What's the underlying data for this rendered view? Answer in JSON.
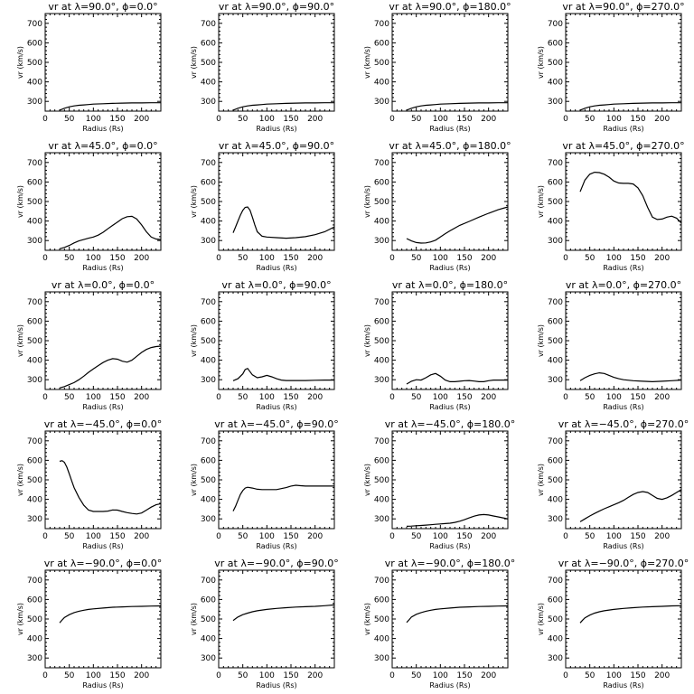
{
  "chart_data": [
    {
      "type": "line",
      "title": "v<sub>r</sub> at λ=90.0°, φ=0.0°",
      "title_text": "vr at λ=90.0°, ϕ=0.0°",
      "xlabel": "Radius (Rs)",
      "ylabel": "vr (km/s)",
      "xlim": [
        0,
        240
      ],
      "ylim": [
        250,
        750
      ],
      "xticks": [
        0,
        50,
        100,
        150,
        200
      ],
      "yticks": [
        300,
        400,
        500,
        600,
        700
      ],
      "x": [
        30,
        40,
        50,
        60,
        70,
        80,
        90,
        100,
        120,
        140,
        160,
        180,
        200,
        220,
        240
      ],
      "y": [
        255,
        265,
        272,
        277,
        280,
        282,
        284,
        286,
        288,
        290,
        291,
        292,
        292,
        293,
        293
      ]
    },
    {
      "type": "line",
      "title_text": "vr at λ=90.0°, ϕ=90.0°",
      "xlabel": "Radius (Rs)",
      "ylabel": "vr (km/s)",
      "xlim": [
        0,
        240
      ],
      "ylim": [
        250,
        750
      ],
      "xticks": [
        0,
        50,
        100,
        150,
        200
      ],
      "yticks": [
        300,
        400,
        500,
        600,
        700
      ],
      "x": [
        30,
        40,
        50,
        60,
        70,
        80,
        90,
        100,
        120,
        140,
        160,
        180,
        200,
        220,
        240
      ],
      "y": [
        255,
        265,
        272,
        277,
        280,
        282,
        284,
        286,
        288,
        290,
        291,
        292,
        292,
        293,
        293
      ]
    },
    {
      "type": "line",
      "title_text": "vr at λ=90.0°, ϕ=180.0°",
      "xlabel": "Radius (Rs)",
      "ylabel": "vr (km/s)",
      "xlim": [
        0,
        240
      ],
      "ylim": [
        250,
        750
      ],
      "xticks": [
        0,
        50,
        100,
        150,
        200
      ],
      "yticks": [
        300,
        400,
        500,
        600,
        700
      ],
      "x": [
        30,
        40,
        50,
        60,
        70,
        80,
        90,
        100,
        120,
        140,
        160,
        180,
        200,
        220,
        240
      ],
      "y": [
        255,
        265,
        272,
        277,
        280,
        282,
        284,
        286,
        288,
        290,
        291,
        292,
        292,
        293,
        293
      ]
    },
    {
      "type": "line",
      "title_text": "vr at λ=90.0°, ϕ=270.0°",
      "xlabel": "Radius (Rs)",
      "ylabel": "vr (km/s)",
      "xlim": [
        0,
        240
      ],
      "ylim": [
        250,
        750
      ],
      "xticks": [
        0,
        50,
        100,
        150,
        200
      ],
      "yticks": [
        300,
        400,
        500,
        600,
        700
      ],
      "x": [
        30,
        40,
        50,
        60,
        70,
        80,
        90,
        100,
        120,
        140,
        160,
        180,
        200,
        220,
        240
      ],
      "y": [
        255,
        265,
        272,
        277,
        280,
        282,
        284,
        286,
        288,
        290,
        291,
        292,
        292,
        293,
        293
      ]
    },
    {
      "type": "line",
      "title_text": "vr at λ=45.0°, ϕ=0.0°",
      "xlabel": "Radius (Rs)",
      "ylabel": "vr (km/s)",
      "xlim": [
        0,
        240
      ],
      "ylim": [
        250,
        750
      ],
      "xticks": [
        0,
        50,
        100,
        150,
        200
      ],
      "yticks": [
        300,
        400,
        500,
        600,
        700
      ],
      "x": [
        30,
        40,
        50,
        60,
        70,
        80,
        90,
        100,
        110,
        120,
        130,
        140,
        150,
        160,
        170,
        180,
        190,
        200,
        210,
        220,
        230,
        240
      ],
      "y": [
        258,
        265,
        275,
        288,
        298,
        305,
        312,
        318,
        328,
        342,
        360,
        378,
        395,
        412,
        422,
        424,
        410,
        380,
        345,
        318,
        308,
        305
      ]
    },
    {
      "type": "line",
      "title_text": "vr at λ=45.0°, ϕ=90.0°",
      "xlabel": "Radius (Rs)",
      "ylabel": "vr (km/s)",
      "xlim": [
        0,
        240
      ],
      "ylim": [
        250,
        750
      ],
      "xticks": [
        0,
        50,
        100,
        150,
        200
      ],
      "yticks": [
        300,
        400,
        500,
        600,
        700
      ],
      "x": [
        30,
        35,
        40,
        45,
        50,
        55,
        60,
        65,
        70,
        75,
        80,
        90,
        100,
        120,
        140,
        160,
        180,
        200,
        220,
        240
      ],
      "y": [
        340,
        370,
        400,
        430,
        455,
        470,
        472,
        455,
        420,
        380,
        345,
        322,
        318,
        315,
        312,
        315,
        320,
        330,
        345,
        370
      ]
    },
    {
      "type": "line",
      "title_text": "vr at λ=45.0°, ϕ=180.0°",
      "xlabel": "Radius (Rs)",
      "ylabel": "vr (km/s)",
      "xlim": [
        0,
        240
      ],
      "ylim": [
        250,
        750
      ],
      "xticks": [
        0,
        50,
        100,
        150,
        200
      ],
      "yticks": [
        300,
        400,
        500,
        600,
        700
      ],
      "x": [
        30,
        40,
        50,
        60,
        70,
        80,
        90,
        100,
        110,
        120,
        140,
        160,
        180,
        200,
        220,
        240
      ],
      "y": [
        310,
        298,
        290,
        287,
        288,
        293,
        302,
        318,
        335,
        350,
        378,
        398,
        420,
        440,
        458,
        472
      ]
    },
    {
      "type": "line",
      "title_text": "vr at λ=45.0°, ϕ=270.0°",
      "xlabel": "Radius (Rs)",
      "ylabel": "vr (km/s)",
      "xlim": [
        0,
        240
      ],
      "ylim": [
        250,
        750
      ],
      "xticks": [
        0,
        50,
        100,
        150,
        200
      ],
      "yticks": [
        300,
        400,
        500,
        600,
        700
      ],
      "x": [
        30,
        40,
        50,
        60,
        70,
        80,
        90,
        100,
        110,
        120,
        130,
        140,
        150,
        160,
        170,
        180,
        190,
        200,
        210,
        220,
        230,
        240
      ],
      "y": [
        550,
        610,
        640,
        650,
        648,
        640,
        625,
        605,
        595,
        593,
        593,
        590,
        570,
        530,
        470,
        420,
        408,
        410,
        420,
        425,
        415,
        390
      ]
    },
    {
      "type": "line",
      "title_text": "vr at λ=0.0°, ϕ=0.0°",
      "xlabel": "Radius (Rs)",
      "ylabel": "vr (km/s)",
      "xlim": [
        0,
        240
      ],
      "ylim": [
        250,
        750
      ],
      "xticks": [
        0,
        50,
        100,
        150,
        200
      ],
      "yticks": [
        300,
        400,
        500,
        600,
        700
      ],
      "x": [
        30,
        40,
        50,
        60,
        70,
        80,
        90,
        100,
        110,
        120,
        130,
        140,
        150,
        160,
        170,
        180,
        190,
        200,
        210,
        220,
        230,
        240
      ],
      "y": [
        258,
        265,
        275,
        285,
        300,
        318,
        338,
        355,
        372,
        388,
        400,
        408,
        405,
        395,
        390,
        400,
        420,
        440,
        455,
        465,
        470,
        472
      ]
    },
    {
      "type": "line",
      "title_text": "vr at λ=0.0°, ϕ=90.0°",
      "xlabel": "Radius (Rs)",
      "ylabel": "vr (km/s)",
      "xlim": [
        0,
        240
      ],
      "ylim": [
        250,
        750
      ],
      "xticks": [
        0,
        50,
        100,
        150,
        200
      ],
      "yticks": [
        300,
        400,
        500,
        600,
        700
      ],
      "x": [
        30,
        40,
        50,
        55,
        60,
        70,
        80,
        90,
        100,
        110,
        120,
        130,
        140,
        160,
        180,
        200,
        220,
        240
      ],
      "y": [
        295,
        305,
        330,
        352,
        358,
        325,
        310,
        315,
        322,
        315,
        305,
        298,
        296,
        296,
        296,
        297,
        298,
        298
      ]
    },
    {
      "type": "line",
      "title_text": "vr at λ=0.0°, ϕ=180.0°",
      "xlabel": "Radius (Rs)",
      "ylabel": "vr (km/s)",
      "xlim": [
        0,
        240
      ],
      "ylim": [
        250,
        750
      ],
      "xticks": [
        0,
        50,
        100,
        150,
        200
      ],
      "yticks": [
        300,
        400,
        500,
        600,
        700
      ],
      "x": [
        30,
        40,
        50,
        60,
        70,
        80,
        90,
        100,
        110,
        120,
        130,
        140,
        150,
        160,
        170,
        180,
        190,
        200,
        210,
        220,
        230,
        240
      ],
      "y": [
        278,
        292,
        300,
        298,
        310,
        325,
        332,
        318,
        298,
        290,
        290,
        292,
        295,
        296,
        293,
        290,
        290,
        295,
        298,
        298,
        298,
        298
      ]
    },
    {
      "type": "line",
      "title_text": "vr at λ=0.0°, ϕ=270.0°",
      "xlabel": "Radius (Rs)",
      "ylabel": "vr (km/s)",
      "xlim": [
        0,
        240
      ],
      "ylim": [
        250,
        750
      ],
      "xticks": [
        0,
        50,
        100,
        150,
        200
      ],
      "yticks": [
        300,
        400,
        500,
        600,
        700
      ],
      "x": [
        30,
        40,
        50,
        60,
        70,
        80,
        90,
        100,
        110,
        120,
        140,
        160,
        180,
        200,
        220,
        240
      ],
      "y": [
        295,
        310,
        322,
        330,
        335,
        332,
        322,
        312,
        305,
        300,
        295,
        292,
        290,
        292,
        295,
        298
      ]
    },
    {
      "type": "line",
      "title_text": "vr at λ=−45.0°, ϕ=0.0°",
      "xlabel": "Radius (Rs)",
      "ylabel": "vr (km/s)",
      "xlim": [
        0,
        240
      ],
      "ylim": [
        250,
        750
      ],
      "xticks": [
        0,
        50,
        100,
        150,
        200
      ],
      "yticks": [
        300,
        400,
        500,
        600,
        700
      ],
      "x": [
        30,
        35,
        40,
        45,
        50,
        55,
        60,
        70,
        80,
        90,
        100,
        110,
        120,
        130,
        140,
        150,
        160,
        170,
        180,
        190,
        200,
        210,
        220,
        230,
        240
      ],
      "y": [
        595,
        598,
        590,
        565,
        530,
        495,
        460,
        410,
        370,
        345,
        338,
        338,
        338,
        340,
        346,
        345,
        338,
        332,
        328,
        325,
        330,
        345,
        360,
        372,
        378
      ]
    },
    {
      "type": "line",
      "title_text": "vr at λ=−45.0°, ϕ=90.0°",
      "xlabel": "Radius (Rs)",
      "ylabel": "vr (km/s)",
      "xlim": [
        0,
        240
      ],
      "ylim": [
        250,
        750
      ],
      "xticks": [
        0,
        50,
        100,
        150,
        200
      ],
      "yticks": [
        300,
        400,
        500,
        600,
        700
      ],
      "x": [
        30,
        35,
        40,
        45,
        50,
        55,
        60,
        70,
        80,
        90,
        100,
        110,
        120,
        130,
        140,
        150,
        160,
        170,
        180,
        200,
        220,
        240
      ],
      "y": [
        340,
        365,
        395,
        425,
        445,
        458,
        462,
        458,
        452,
        450,
        450,
        450,
        450,
        455,
        460,
        468,
        472,
        470,
        468,
        468,
        468,
        468
      ]
    },
    {
      "type": "line",
      "title_text": "vr at λ=−45.0°, ϕ=180.0°",
      "xlabel": "Radius (Rs)",
      "ylabel": "vr (km/s)",
      "xlim": [
        0,
        240
      ],
      "ylim": [
        250,
        750
      ],
      "xticks": [
        0,
        50,
        100,
        150,
        200
      ],
      "yticks": [
        300,
        400,
        500,
        600,
        700
      ],
      "x": [
        30,
        40,
        50,
        60,
        70,
        80,
        90,
        100,
        110,
        120,
        130,
        140,
        150,
        160,
        170,
        180,
        190,
        200,
        210,
        220,
        230,
        240
      ],
      "y": [
        262,
        263,
        265,
        266,
        268,
        270,
        272,
        274,
        276,
        278,
        282,
        288,
        296,
        305,
        314,
        320,
        322,
        320,
        315,
        310,
        305,
        300
      ]
    },
    {
      "type": "line",
      "title_text": "vr at λ=−45.0°, ϕ=270.0°",
      "xlabel": "Radius (Rs)",
      "ylabel": "vr (km/s)",
      "xlim": [
        0,
        240
      ],
      "ylim": [
        250,
        750
      ],
      "xticks": [
        0,
        50,
        100,
        150,
        200
      ],
      "yticks": [
        300,
        400,
        500,
        600,
        700
      ],
      "x": [
        30,
        40,
        50,
        60,
        70,
        80,
        90,
        100,
        110,
        120,
        130,
        140,
        150,
        160,
        170,
        180,
        190,
        200,
        210,
        220,
        230,
        240
      ],
      "y": [
        285,
        300,
        315,
        328,
        340,
        352,
        362,
        372,
        383,
        395,
        410,
        425,
        435,
        440,
        435,
        420,
        405,
        400,
        408,
        420,
        435,
        450
      ]
    },
    {
      "type": "line",
      "title_text": "vr at λ=−90.0°, ϕ=0.0°",
      "xlabel": "Radius (Rs)",
      "ylabel": "vr (km/s)",
      "xlim": [
        0,
        240
      ],
      "ylim": [
        250,
        750
      ],
      "xticks": [
        0,
        50,
        100,
        150,
        200
      ],
      "yticks": [
        300,
        400,
        500,
        600,
        700
      ],
      "x": [
        30,
        35,
        40,
        50,
        60,
        70,
        80,
        90,
        100,
        120,
        140,
        160,
        180,
        200,
        220,
        240
      ],
      "y": [
        480,
        495,
        508,
        522,
        533,
        540,
        545,
        549,
        552,
        556,
        560,
        562,
        564,
        565,
        566,
        567
      ]
    },
    {
      "type": "line",
      "title_text": "vr at λ=−90.0°, ϕ=90.0°",
      "xlabel": "Radius (Rs)",
      "ylabel": "vr (km/s)",
      "xlim": [
        0,
        240
      ],
      "ylim": [
        250,
        750
      ],
      "xticks": [
        0,
        50,
        100,
        150,
        200
      ],
      "yticks": [
        300,
        400,
        500,
        600,
        700
      ],
      "x": [
        30,
        35,
        40,
        50,
        60,
        70,
        80,
        90,
        100,
        120,
        140,
        160,
        180,
        200,
        220,
        240
      ],
      "y": [
        492,
        502,
        510,
        522,
        530,
        537,
        542,
        546,
        549,
        554,
        558,
        561,
        563,
        565,
        568,
        572
      ]
    },
    {
      "type": "line",
      "title_text": "vr at λ=−90.0°, ϕ=180.0°",
      "xlabel": "Radius (Rs)",
      "ylabel": "vr (km/s)",
      "xlim": [
        0,
        240
      ],
      "ylim": [
        250,
        750
      ],
      "xticks": [
        0,
        50,
        100,
        150,
        200
      ],
      "yticks": [
        300,
        400,
        500,
        600,
        700
      ],
      "x": [
        30,
        35,
        40,
        50,
        60,
        70,
        80,
        90,
        100,
        120,
        140,
        160,
        180,
        200,
        220,
        240
      ],
      "y": [
        482,
        496,
        510,
        524,
        533,
        540,
        545,
        549,
        552,
        556,
        560,
        562,
        564,
        565,
        566,
        567
      ]
    },
    {
      "type": "line",
      "title_text": "vr at λ=−90.0°, ϕ=270.0°",
      "xlabel": "Radius (Rs)",
      "ylabel": "vr (km/s)",
      "xlim": [
        0,
        240
      ],
      "ylim": [
        250,
        750
      ],
      "xticks": [
        0,
        50,
        100,
        150,
        200
      ],
      "yticks": [
        300,
        400,
        500,
        600,
        700
      ],
      "x": [
        30,
        35,
        40,
        50,
        60,
        70,
        80,
        90,
        100,
        120,
        140,
        160,
        180,
        200,
        220,
        240
      ],
      "y": [
        480,
        494,
        506,
        520,
        530,
        537,
        542,
        546,
        549,
        554,
        558,
        561,
        563,
        565,
        567,
        568
      ]
    }
  ]
}
